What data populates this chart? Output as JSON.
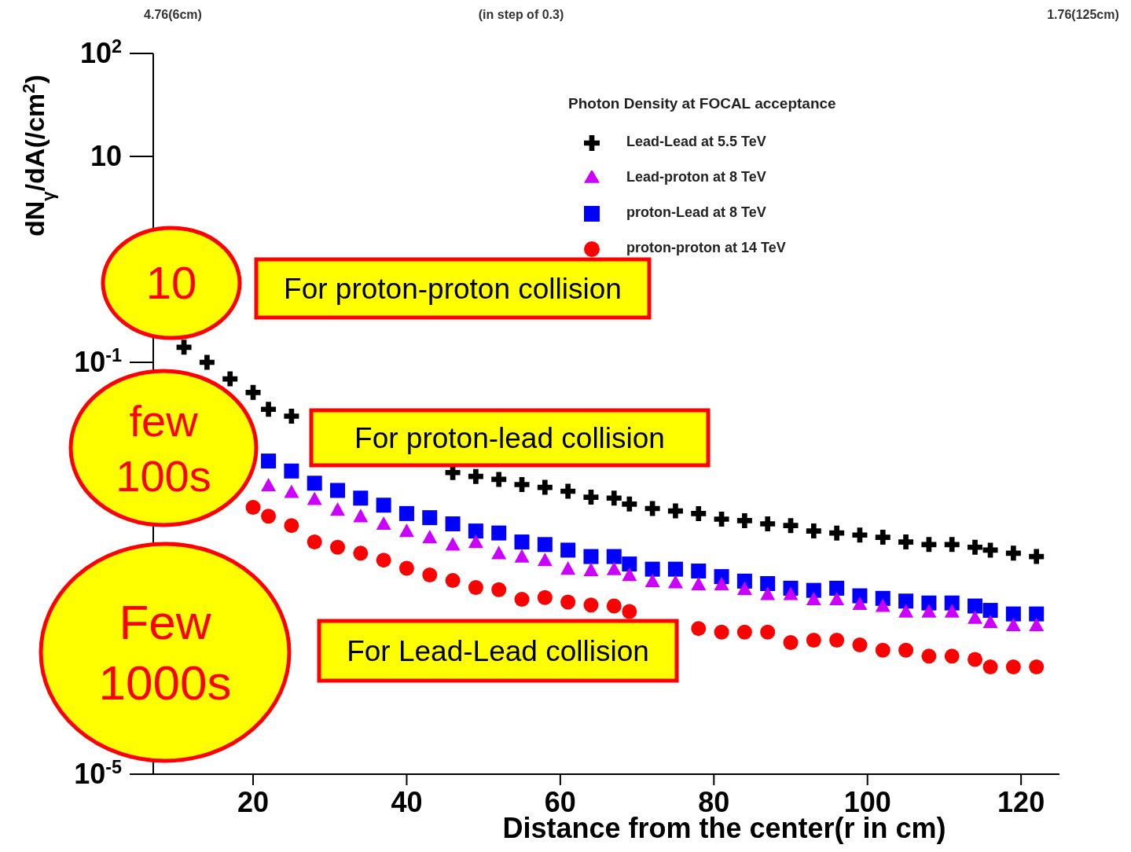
{
  "chart_data": {
    "type": "scatter",
    "xlabel": "Distance from the center(r in cm)",
    "ylabel": "dN$_{γ}$/dA(/cm$^{2}$)",
    "legend_title": "Photon Density at FOCAL acceptance",
    "legend": "top right",
    "log": "y",
    "xlim": [
      7,
      125
    ],
    "xticks": [
      20,
      40,
      60,
      80,
      100,
      120
    ],
    "ylim": [
      1e-05,
      100
    ],
    "yticks": [
      {
        "value": 100,
        "label": "10$^{2}$"
      },
      {
        "value": 10,
        "label": "10"
      },
      {
        "value": 0.1,
        "label": "10$^{-1}$"
      },
      {
        "value": 1e-05,
        "label": "10$^{-5}$"
      }
    ],
    "x": [
      11,
      14,
      17,
      20,
      22,
      25,
      28,
      31,
      34,
      37,
      40,
      43,
      46,
      49,
      52,
      55,
      58,
      61,
      64,
      67,
      69,
      72,
      75,
      78,
      81,
      84,
      87,
      90,
      93,
      96,
      99,
      102,
      105,
      108,
      111,
      114,
      116,
      119,
      122
    ],
    "series": [
      {
        "name": "Lead-Lead at 5.5 TeV",
        "color": "#000000",
        "marker": "cross",
        "values": [
          0.14,
          0.1,
          0.069,
          0.051,
          0.035,
          0.03,
          null,
          null,
          null,
          null,
          null,
          null,
          0.0085,
          0.0078,
          0.0073,
          0.0065,
          0.0061,
          0.0056,
          0.0049,
          0.0048,
          0.0042,
          0.0038,
          0.0036,
          0.0034,
          0.003,
          0.0029,
          0.0027,
          0.0026,
          0.0023,
          0.0022,
          0.0021,
          0.002,
          0.0018,
          0.0017,
          0.0017,
          0.0016,
          0.0015,
          0.0014,
          0.0013
        ]
      },
      {
        "name": "proton-Lead at 8 TeV",
        "color": "#0000ff",
        "marker": "square",
        "values": [
          null,
          null,
          null,
          null,
          0.011,
          0.0088,
          0.0067,
          0.0057,
          0.0048,
          0.0041,
          0.0034,
          0.0031,
          0.0027,
          0.0023,
          0.0022,
          0.0018,
          0.0017,
          0.0015,
          0.0013,
          0.0013,
          0.0011,
          0.00098,
          0.00098,
          0.00094,
          0.00083,
          0.00075,
          0.00071,
          0.00064,
          0.00061,
          0.00064,
          0.00054,
          0.00051,
          0.00048,
          0.00046,
          0.00046,
          0.00043,
          0.00039,
          0.00036,
          0.00036
        ]
      },
      {
        "name": "Lead-proton at 8 TeV",
        "color": "#cc00ff",
        "marker": "triangle",
        "values": [
          null,
          null,
          null,
          null,
          0.0064,
          0.0055,
          0.0047,
          0.0037,
          0.0032,
          0.0027,
          0.0023,
          0.002,
          0.0017,
          0.0018,
          0.0014,
          0.0013,
          0.0012,
          0.00099,
          0.00096,
          0.00098,
          0.00086,
          0.00075,
          0.00073,
          0.0007,
          0.0007,
          0.00063,
          0.00056,
          0.00056,
          0.0005,
          0.0005,
          0.00045,
          0.00043,
          0.00038,
          0.00038,
          0.00038,
          0.00033,
          0.0003,
          0.00028,
          0.00028
        ]
      },
      {
        "name": "proton-proton at 14 TeV",
        "color": "#ff0000",
        "marker": "circle",
        "values": [
          null,
          null,
          null,
          0.0039,
          0.0032,
          0.0026,
          0.0018,
          0.0016,
          0.0014,
          0.0012,
          0.001,
          0.00086,
          0.00076,
          0.00065,
          0.00062,
          0.0005,
          0.00052,
          0.00047,
          0.00044,
          0.00043,
          0.00038,
          null,
          null,
          0.00026,
          0.00024,
          0.00024,
          0.00024,
          0.00019,
          0.0002,
          0.0002,
          0.00018,
          0.00016,
          0.00016,
          0.00014,
          0.00014,
          0.00013,
          0.00011,
          0.00011,
          0.00011
        ]
      }
    ],
    "annotations": [
      "4.76(6cm)",
      "(in step of 0.3)",
      "1.76(125cm)",
      "10",
      "few 100s",
      "Few 1000s",
      "For proton-proton collision",
      "For proton-lead collision",
      "For Lead-Lead collision"
    ]
  }
}
